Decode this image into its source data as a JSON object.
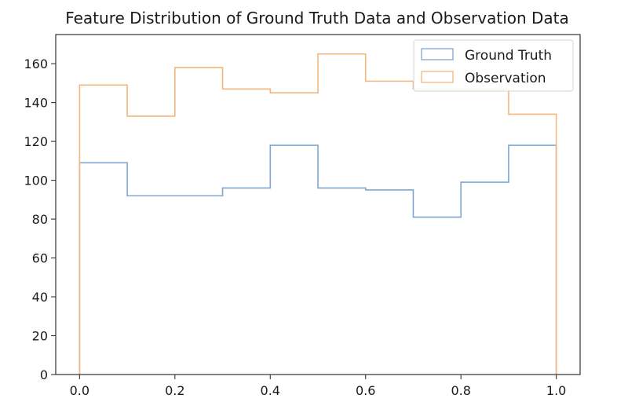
{
  "chart_data": {
    "type": "histogram",
    "title": "Feature Distribution of Ground Truth Data and Observation Data",
    "xlabel": "",
    "ylabel": "",
    "xlim": [
      -0.05,
      1.05
    ],
    "ylim": [
      0,
      175
    ],
    "grid": false,
    "legend_position": "top-right",
    "bin_edges": [
      0.0,
      0.1,
      0.2,
      0.3,
      0.4,
      0.5,
      0.6,
      0.7,
      0.8,
      0.9,
      1.0
    ],
    "x_ticks": [
      0.0,
      0.2,
      0.4,
      0.6,
      0.8,
      1.0
    ],
    "x_tick_labels": [
      "0.0",
      "0.2",
      "0.4",
      "0.6",
      "0.8",
      "1.0"
    ],
    "y_ticks": [
      0,
      20,
      40,
      60,
      80,
      100,
      120,
      140,
      160
    ],
    "y_tick_labels": [
      "0",
      "20",
      "40",
      "60",
      "80",
      "100",
      "120",
      "140",
      "160"
    ],
    "series": [
      {
        "name": "Ground Truth",
        "color": "#7fa6d0",
        "values": [
          109,
          92,
          92,
          96,
          118,
          96,
          95,
          81,
          99,
          118
        ]
      },
      {
        "name": "Observation",
        "color": "#f2b77f",
        "values": [
          149,
          133,
          158,
          147,
          145,
          165,
          151,
          147,
          147,
          134
        ]
      }
    ]
  }
}
